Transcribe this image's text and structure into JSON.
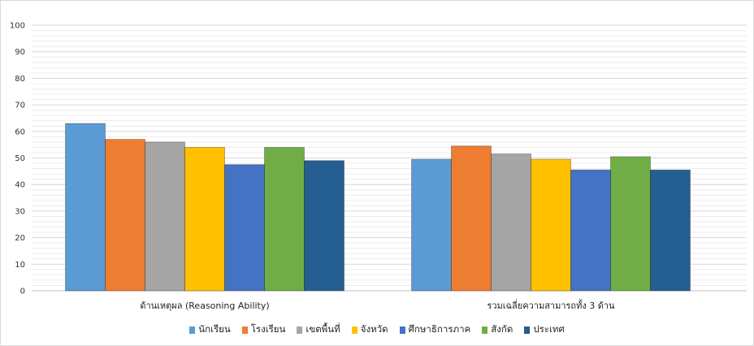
{
  "chart_data": {
    "type": "bar",
    "categories": [
      "ด้านเหตุผล (Reasoning Ability)",
      "รวมเฉลี่ยความสามารถทั้ง 3 ด้าน"
    ],
    "ylim": [
      0,
      100
    ],
    "yticks": [
      0,
      10,
      20,
      30,
      40,
      50,
      60,
      70,
      80,
      90,
      100
    ],
    "grid": true,
    "legend_position": "bottom",
    "series": [
      {
        "name": "นักเรียน",
        "color": "#5b9bd5",
        "values": [
          63,
          49.5
        ]
      },
      {
        "name": "โรงเรียน",
        "color": "#ed7d31",
        "values": [
          57,
          54.5
        ]
      },
      {
        "name": "เขตพื้นที่",
        "color": "#a5a5a5",
        "values": [
          56,
          51.5
        ]
      },
      {
        "name": "จังหวัด",
        "color": "#ffc000",
        "values": [
          54,
          49.5
        ]
      },
      {
        "name": "ศึกษาธิการภาค",
        "color": "#4472c4",
        "values": [
          47.5,
          45.5
        ]
      },
      {
        "name": "สังกัด",
        "color": "#70ad47",
        "values": [
          54,
          50.5
        ]
      },
      {
        "name": "ประเทศ",
        "color": "#255e91",
        "values": [
          49,
          45.5
        ]
      }
    ]
  }
}
